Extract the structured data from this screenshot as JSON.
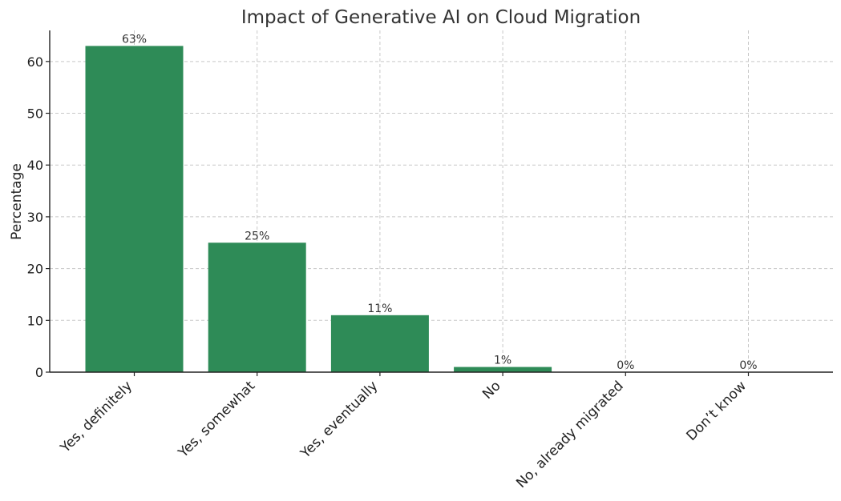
{
  "chart_data": {
    "type": "bar",
    "title": "Impact of Generative AI on Cloud Migration",
    "xlabel": "",
    "ylabel": "Percentage",
    "categories": [
      "Yes, definitely",
      "Yes, somewhat",
      "Yes, eventually",
      "No",
      "No, already migrated",
      "Don’t know"
    ],
    "values": [
      63,
      25,
      11,
      1,
      0,
      0
    ],
    "data_labels": [
      "63%",
      "25%",
      "11%",
      "1%",
      "0%",
      "0%"
    ],
    "ylim": [
      0,
      66
    ],
    "yticks": [
      0,
      10,
      20,
      30,
      40,
      50,
      60
    ],
    "grid": true,
    "bar_color": "#2e8b57"
  }
}
